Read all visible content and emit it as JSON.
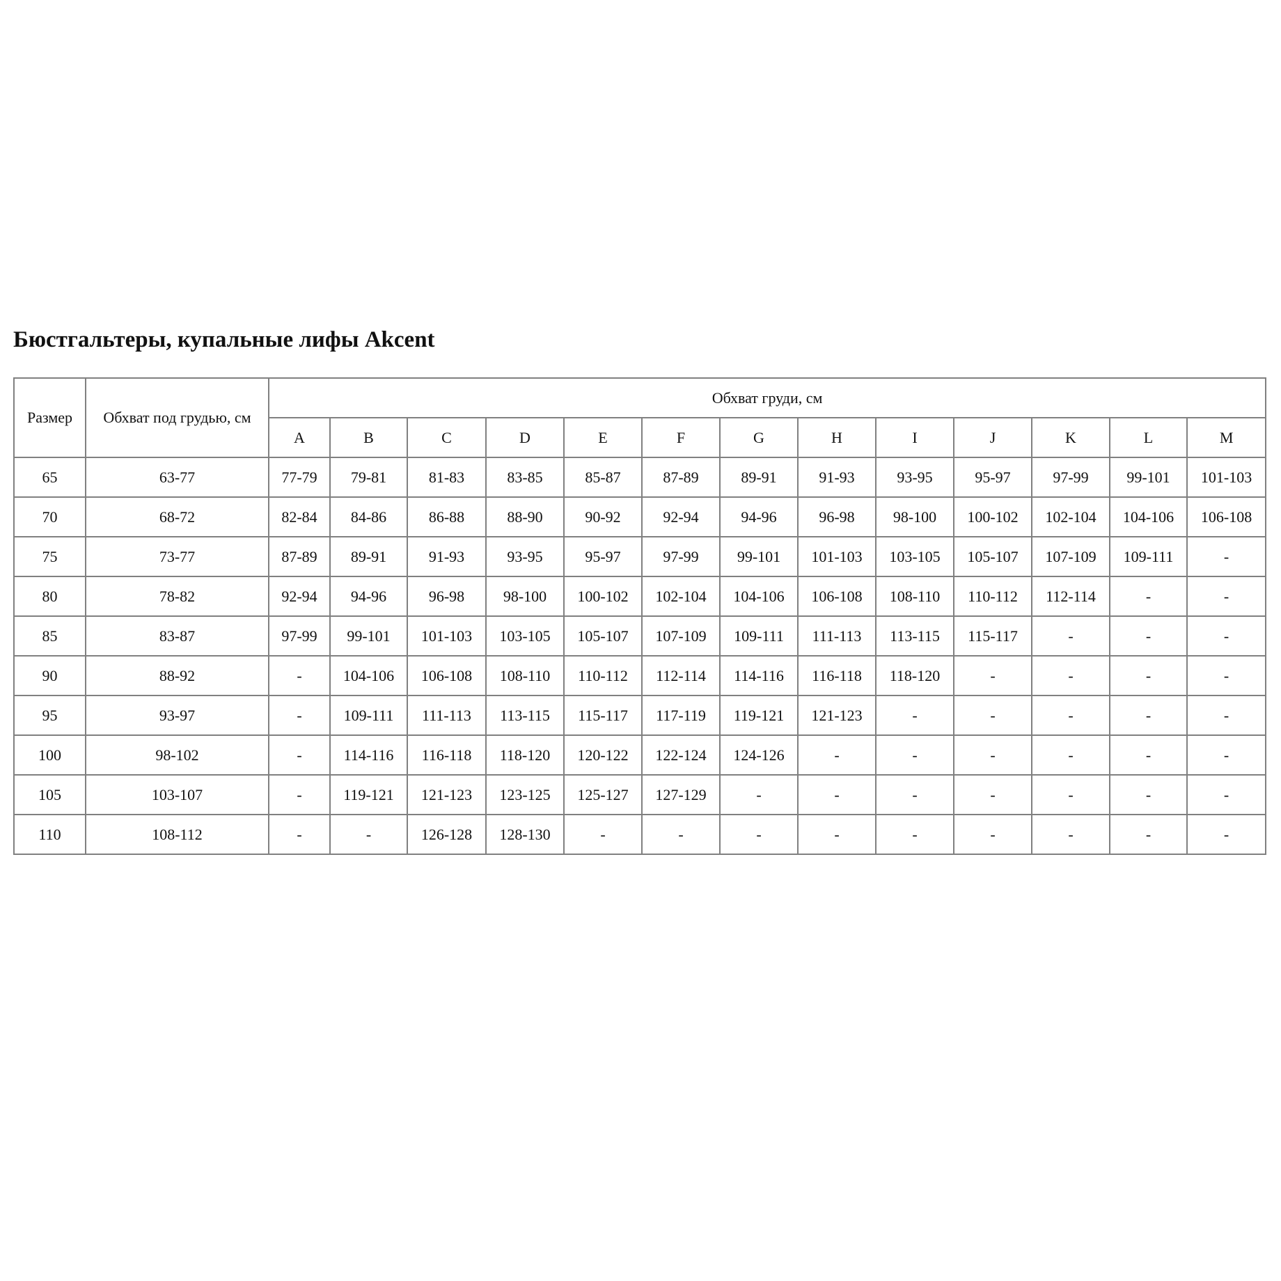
{
  "title": "Бюстгальтеры, купальные лифы Akcent",
  "table": {
    "header_size": "Размер",
    "header_underbust": "Обхват под грудью, см",
    "header_bust": "Обхват груди, см",
    "cups": [
      "A",
      "B",
      "C",
      "D",
      "E",
      "F",
      "G",
      "H",
      "I",
      "J",
      "K",
      "L",
      "M"
    ],
    "rows": [
      {
        "size": "65",
        "underbust": "63-77",
        "values": [
          "77-79",
          "79-81",
          "81-83",
          "83-85",
          "85-87",
          "87-89",
          "89-91",
          "91-93",
          "93-95",
          "95-97",
          "97-99",
          "99-101",
          "101-103"
        ]
      },
      {
        "size": "70",
        "underbust": "68-72",
        "values": [
          "82-84",
          "84-86",
          "86-88",
          "88-90",
          "90-92",
          "92-94",
          "94-96",
          "96-98",
          "98-100",
          "100-102",
          "102-104",
          "104-106",
          "106-108"
        ]
      },
      {
        "size": "75",
        "underbust": "73-77",
        "values": [
          "87-89",
          "89-91",
          "91-93",
          "93-95",
          "95-97",
          "97-99",
          "99-101",
          "101-103",
          "103-105",
          "105-107",
          "107-109",
          "109-111",
          "-"
        ]
      },
      {
        "size": "80",
        "underbust": "78-82",
        "values": [
          "92-94",
          "94-96",
          "96-98",
          "98-100",
          "100-102",
          "102-104",
          "104-106",
          "106-108",
          "108-110",
          "110-112",
          "112-114",
          "-",
          "-"
        ]
      },
      {
        "size": "85",
        "underbust": "83-87",
        "values": [
          "97-99",
          "99-101",
          "101-103",
          "103-105",
          "105-107",
          "107-109",
          "109-111",
          "111-113",
          "113-115",
          "115-117",
          "-",
          "-",
          "-"
        ]
      },
      {
        "size": "90",
        "underbust": "88-92",
        "values": [
          "-",
          "104-106",
          "106-108",
          "108-110",
          "110-112",
          "112-114",
          "114-116",
          "116-118",
          "118-120",
          "-",
          "-",
          "-",
          "-"
        ]
      },
      {
        "size": "95",
        "underbust": "93-97",
        "values": [
          "-",
          "109-111",
          "111-113",
          "113-115",
          "115-117",
          "117-119",
          "119-121",
          "121-123",
          "-",
          "-",
          "-",
          "-",
          "-"
        ]
      },
      {
        "size": "100",
        "underbust": "98-102",
        "values": [
          "-",
          "114-116",
          "116-118",
          "118-120",
          "120-122",
          "122-124",
          "124-126",
          "-",
          "-",
          "-",
          "-",
          "-",
          "-"
        ]
      },
      {
        "size": "105",
        "underbust": "103-107",
        "values": [
          "-",
          "119-121",
          "121-123",
          "123-125",
          "125-127",
          "127-129",
          "-",
          "-",
          "-",
          "-",
          "-",
          "-",
          "-"
        ]
      },
      {
        "size": "110",
        "underbust": "108-112",
        "values": [
          "-",
          "-",
          "126-128",
          "128-130",
          "-",
          "-",
          "-",
          "-",
          "-",
          "-",
          "-",
          "-",
          "-"
        ]
      }
    ]
  }
}
